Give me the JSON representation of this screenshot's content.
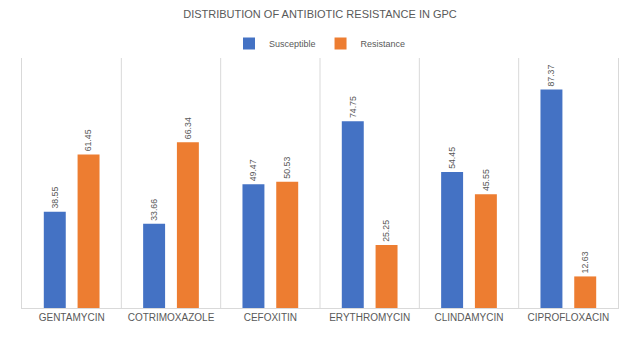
{
  "chart_data": {
    "type": "bar",
    "title": "DISTRIBUTION OF ANTIBIOTIC RESISTANCE IN GPC",
    "categories": [
      "GENTAMYCIN",
      "COTRIMOXAZOLE",
      "CEFOXITIN",
      "ERYTHROMYCIN",
      "CLINDAMYCIN",
      "CIPROFLOXACIN"
    ],
    "series": [
      {
        "name": "Susceptible",
        "color": "#4472c4",
        "values": [
          38.55,
          33.66,
          49.47,
          74.75,
          54.45,
          87.37
        ]
      },
      {
        "name": "Resistance",
        "color": "#ed7d31",
        "values": [
          61.45,
          66.34,
          50.53,
          25.25,
          45.55,
          12.63
        ]
      }
    ],
    "ylim": [
      0,
      100
    ],
    "grid": false,
    "legend": "top",
    "data_labels": true,
    "tick_labels": "x"
  }
}
